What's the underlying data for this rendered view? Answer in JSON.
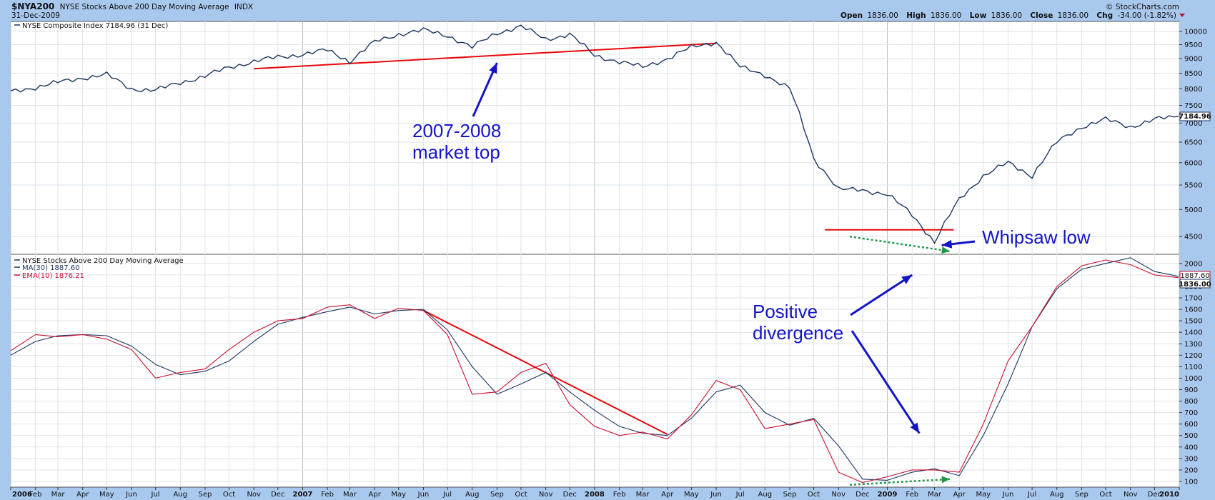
{
  "header": {
    "symbol": "$NYA200",
    "name": "NYSE Stocks Above 200 Day Moving Average",
    "exchange": "INDX",
    "date": "31-Dec-2009",
    "copyright": "© StockCharts.com",
    "quote": {
      "open_label": "Open",
      "open": "1836.00",
      "high_label": "High",
      "high": "1836.00",
      "low_label": "Low",
      "low": "1836.00",
      "close_label": "Close",
      "close": "1836.00",
      "chg_label": "Chg",
      "chg": "-34.00 (-1.82%)"
    }
  },
  "colors": {
    "background": "#a9c8ee",
    "plot": "#ffffff",
    "grid": "#dde3ea",
    "price": "#1d3560",
    "ma": "#1d3560",
    "ema": "#c8102e",
    "trend": "#e8080a",
    "annotation": "#1515c8",
    "divergence": "#1e9a47"
  },
  "chart_data": [
    {
      "type": "line",
      "legend": "NYSE Composite Index 7184.96 (31 Dec)",
      "series": [
        {
          "name": "NYSE Composite Index",
          "x": [
            "2006-01",
            "2006-02",
            "2006-03",
            "2006-04",
            "2006-05",
            "2006-06",
            "2006-07",
            "2006-08",
            "2006-09",
            "2006-10",
            "2006-11",
            "2006-12",
            "2007-01",
            "2007-02",
            "2007-03",
            "2007-04",
            "2007-05",
            "2007-06",
            "2007-07",
            "2007-08",
            "2007-09",
            "2007-10",
            "2007-11",
            "2007-12",
            "2008-01",
            "2008-02",
            "2008-03",
            "2008-04",
            "2008-05",
            "2008-06",
            "2008-07",
            "2008-08",
            "2008-09",
            "2008-10",
            "2008-11",
            "2008-12",
            "2009-01",
            "2009-02",
            "2009-03",
            "2009-04",
            "2009-05",
            "2009-06",
            "2009-07",
            "2009-08",
            "2009-09",
            "2009-10",
            "2009-11",
            "2009-12",
            "2009-12-31"
          ],
          "values": [
            7900,
            8050,
            8200,
            8350,
            8450,
            8000,
            7950,
            8200,
            8400,
            8700,
            8900,
            9050,
            9150,
            9300,
            8900,
            9600,
            9900,
            10050,
            9850,
            9400,
            9950,
            10200,
            9700,
            9900,
            9100,
            8900,
            8700,
            9000,
            9400,
            9600,
            8700,
            8450,
            8000,
            6100,
            5400,
            5400,
            5300,
            4900,
            4400,
            5200,
            5700,
            6000,
            5700,
            6500,
            6900,
            7100,
            6900,
            7100,
            7184.96
          ]
        }
      ],
      "ylim": [
        4200,
        10400
      ],
      "yticks": [
        4500,
        5000,
        5500,
        6000,
        6500,
        7000,
        7500,
        8000,
        8500,
        9000,
        9500,
        10000
      ],
      "y_scale": "log",
      "last_value_label": "7184.96",
      "trendlines": [
        {
          "from": [
            "2006-11",
            8650
          ],
          "to": [
            "2008-06",
            9550
          ]
        },
        {
          "from": [
            "2008-10-15",
            4620
          ],
          "to": [
            "2009-03-25",
            4620
          ]
        }
      ],
      "annotations": [
        {
          "text_lines": [
            "2007-2008",
            "market top"
          ],
          "arrow_to": [
            "2007-09",
            8850
          ]
        },
        {
          "text_lines": [
            "Whipsaw low"
          ],
          "arrow_to": [
            "2009-03-10",
            4350
          ]
        }
      ],
      "grid": true,
      "y_axis": "right"
    },
    {
      "type": "line",
      "title": "NYSE Stocks Above 200 Day Moving Average",
      "x": [
        "2006-01",
        "2006-02",
        "2006-03",
        "2006-04",
        "2006-05",
        "2006-06",
        "2006-07",
        "2006-08",
        "2006-09",
        "2006-10",
        "2006-11",
        "2006-12",
        "2007-01",
        "2007-02",
        "2007-03",
        "2007-04",
        "2007-05",
        "2007-06",
        "2007-07",
        "2007-08",
        "2007-09",
        "2007-10",
        "2007-11",
        "2007-12",
        "2008-01",
        "2008-02",
        "2008-03",
        "2008-04",
        "2008-05",
        "2008-06",
        "2008-07",
        "2008-08",
        "2008-09",
        "2008-10",
        "2008-11",
        "2008-12",
        "2009-01",
        "2009-02",
        "2009-03",
        "2009-04",
        "2009-05",
        "2009-06",
        "2009-07",
        "2009-08",
        "2009-09",
        "2009-10",
        "2009-11",
        "2009-12",
        "2009-12-31"
      ],
      "series": [
        {
          "name": "MA(30)",
          "legend": "MA(30) 1887.60",
          "values": [
            1200,
            1320,
            1370,
            1380,
            1370,
            1280,
            1120,
            1030,
            1060,
            1150,
            1320,
            1470,
            1530,
            1580,
            1620,
            1560,
            1590,
            1600,
            1420,
            1100,
            860,
            950,
            1050,
            880,
            720,
            580,
            520,
            500,
            650,
            880,
            940,
            700,
            590,
            650,
            410,
            120,
            110,
            180,
            210,
            150,
            500,
            950,
            1450,
            1780,
            1950,
            2000,
            2050,
            1930,
            1887.6
          ]
        },
        {
          "name": "EMA(10)",
          "legend": "EMA(10) 1876.21",
          "values": [
            1240,
            1380,
            1360,
            1380,
            1340,
            1250,
            1000,
            1050,
            1080,
            1250,
            1400,
            1500,
            1520,
            1620,
            1640,
            1520,
            1610,
            1590,
            1380,
            860,
            880,
            1050,
            1130,
            770,
            580,
            500,
            530,
            470,
            680,
            980,
            900,
            560,
            600,
            640,
            180,
            90,
            140,
            200,
            200,
            180,
            600,
            1150,
            1450,
            1800,
            1980,
            2030,
            1990,
            1900,
            1876.21
          ]
        }
      ],
      "ylim": [
        50,
        2080
      ],
      "yticks": [
        100,
        200,
        300,
        400,
        500,
        600,
        700,
        800,
        900,
        1000,
        1100,
        1200,
        1300,
        1400,
        1500,
        1600,
        1700,
        1800,
        1900,
        2000
      ],
      "last_value_labels": [
        "1887.60",
        "1836.00"
      ],
      "trendlines": [
        {
          "from": [
            "2007-06",
            1590
          ],
          "to": [
            "2008-04",
            510
          ]
        }
      ],
      "annotations": [
        {
          "text_lines": [
            "Positive",
            "divergence"
          ],
          "arrows_to": [
            [
              "2009-02",
              1900
            ],
            [
              "2009-02-10",
              520
            ]
          ]
        }
      ],
      "divergence_lines": [
        {
          "from": [
            "2008-11-15",
            4500
          ],
          "to": [
            "2009-03-20",
            4250
          ],
          "panel": "price"
        },
        {
          "from": [
            "2008-11-15",
            70
          ],
          "to": [
            "2009-03-20",
            120
          ],
          "panel": "breadth"
        }
      ],
      "grid": true,
      "y_axis": "right"
    }
  ],
  "x_axis": {
    "ticks": [
      "2006",
      "Feb",
      "Mar",
      "Apr",
      "May",
      "Jun",
      "Jul",
      "Aug",
      "Sep",
      "Oct",
      "Nov",
      "Dec",
      "2007",
      "Feb",
      "Mar",
      "Apr",
      "May",
      "Jun",
      "Jul",
      "Aug",
      "Sep",
      "Oct",
      "Nov",
      "Dec",
      "2008",
      "Feb",
      "Mar",
      "Apr",
      "May",
      "Jun",
      "Jul",
      "Aug",
      "Sep",
      "Oct",
      "Nov",
      "Dec",
      "2009",
      "Feb",
      "Mar",
      "Apr",
      "May",
      "Jun",
      "Jul",
      "Aug",
      "Sep",
      "Oct",
      "Nov",
      "Dec",
      "2010"
    ],
    "bold_ticks": [
      "2006",
      "2007",
      "2008",
      "2009",
      "2010"
    ]
  }
}
